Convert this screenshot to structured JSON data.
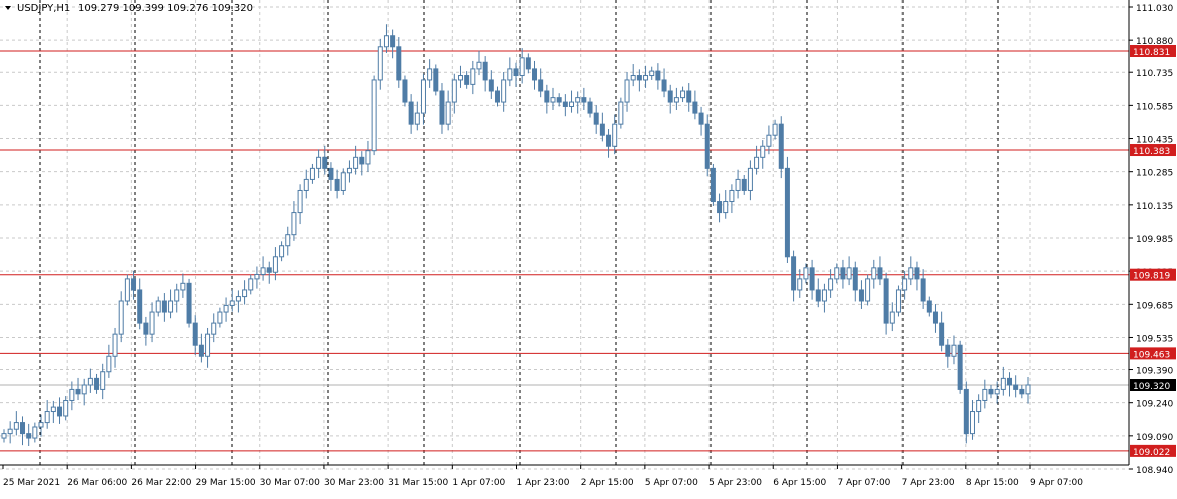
{
  "header": {
    "symbol": "USDJPY,H1",
    "ohlc": "109.279 109.399 109.276 109.320"
  },
  "colors": {
    "candle": "#4f7ca6",
    "hline": "#d11e1e",
    "price_label_bg": "#d11e1e",
    "current_label_bg": "#000000",
    "grid": "#c9c9c9",
    "vline": "#000000"
  },
  "chart_data": {
    "type": "candlestick",
    "series_name": "USDJPY,H1",
    "ylim": [
      108.94,
      111.03
    ],
    "y_ticks": [
      "111.030",
      "110.880",
      "110.735",
      "110.585",
      "110.435",
      "110.285",
      "110.135",
      "109.985",
      "109.835",
      "109.685",
      "109.535",
      "109.390",
      "109.240",
      "109.090",
      "108.940"
    ],
    "x_ticks": [
      "25 Mar 2021",
      "26 Mar 06:00",
      "26 Mar 22:00",
      "29 Mar 15:00",
      "30 Mar 07:00",
      "30 Mar 23:00",
      "31 Mar 15:00",
      "1 Apr 07:00",
      "1 Apr 23:00",
      "2 Apr 15:00",
      "5 Apr 07:00",
      "5 Apr 23:00",
      "6 Apr 15:00",
      "7 Apr 07:00",
      "7 Apr 23:00",
      "8 Apr 15:00",
      "9 Apr 07:00"
    ],
    "horizontal_lines": [
      {
        "price": 110.831,
        "label": "110.831"
      },
      {
        "price": 110.383,
        "label": "110.383"
      },
      {
        "price": 109.819,
        "label": "109.819"
      },
      {
        "price": 109.463,
        "label": "109.463"
      },
      {
        "price": 109.022,
        "label": "109.022"
      }
    ],
    "current_price": {
      "price": 109.32,
      "label": "109.320"
    },
    "day_separators": [
      "26 Mar",
      "29 Mar",
      "30 Mar",
      "31 Mar",
      "1 Apr",
      "2 Apr",
      "5 Apr",
      "6 Apr",
      "7 Apr",
      "8 Apr",
      "9 Apr"
    ],
    "closes": [
      109.1,
      109.12,
      109.15,
      109.1,
      109.08,
      109.13,
      109.15,
      109.2,
      109.22,
      109.18,
      109.25,
      109.3,
      109.28,
      109.32,
      109.35,
      109.3,
      109.38,
      109.45,
      109.55,
      109.7,
      109.8,
      109.75,
      109.6,
      109.55,
      109.65,
      109.7,
      109.65,
      109.7,
      109.75,
      109.78,
      109.6,
      109.5,
      109.45,
      109.55,
      109.6,
      109.65,
      109.68,
      109.7,
      109.72,
      109.75,
      109.8,
      109.82,
      109.85,
      109.83,
      109.9,
      109.95,
      110.0,
      110.1,
      110.2,
      110.25,
      110.3,
      110.35,
      110.3,
      110.25,
      110.2,
      110.28,
      110.3,
      110.35,
      110.32,
      110.38,
      110.7,
      110.85,
      110.9,
      110.85,
      110.7,
      110.6,
      110.5,
      110.55,
      110.7,
      110.75,
      110.65,
      110.5,
      110.6,
      110.7,
      110.72,
      110.68,
      110.75,
      110.78,
      110.7,
      110.65,
      110.6,
      110.7,
      110.75,
      110.72,
      110.8,
      110.75,
      110.7,
      110.65,
      110.6,
      110.62,
      110.6,
      110.58,
      110.6,
      110.62,
      110.6,
      110.55,
      110.5,
      110.45,
      110.4,
      110.5,
      110.6,
      110.7,
      110.72,
      110.7,
      110.72,
      110.74,
      110.7,
      110.65,
      110.6,
      110.62,
      110.65,
      110.6,
      110.55,
      110.5,
      110.3,
      110.15,
      110.1,
      110.15,
      110.2,
      110.25,
      110.2,
      110.3,
      110.35,
      110.4,
      110.45,
      110.5,
      110.3,
      109.9,
      109.75,
      109.8,
      109.85,
      109.75,
      109.7,
      109.75,
      109.8,
      109.85,
      109.8,
      109.85,
      109.75,
      109.7,
      109.8,
      109.85,
      109.8,
      109.6,
      109.65,
      109.75,
      109.8,
      109.85,
      109.8,
      109.7,
      109.65,
      109.6,
      109.5,
      109.45,
      109.5,
      109.3,
      109.1,
      109.2,
      109.25,
      109.3,
      109.28,
      109.3,
      109.35,
      109.32,
      109.3,
      109.28,
      109.32
    ]
  }
}
